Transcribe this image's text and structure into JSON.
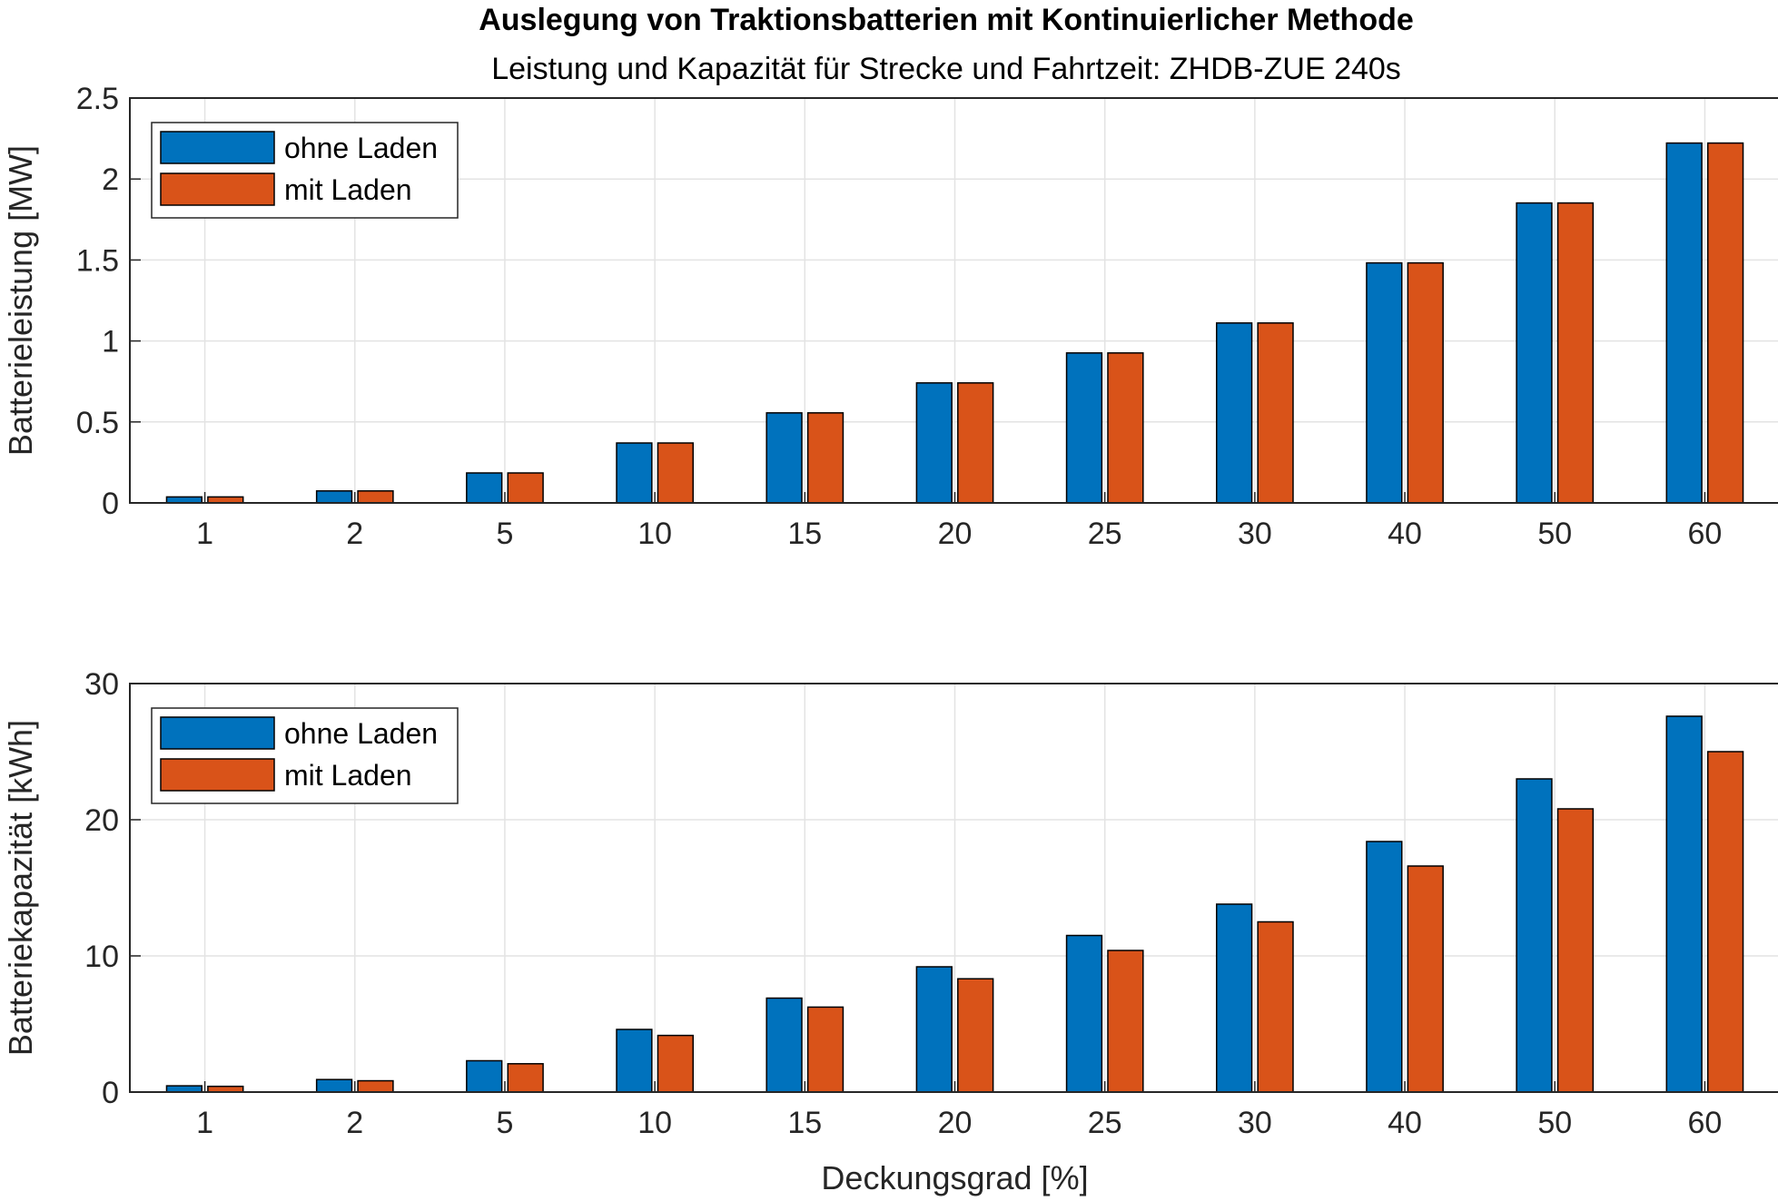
{
  "figure": {
    "title": "Auslegung von Traktionsbatterien mit Kontinuierlicher Methode",
    "subtitle": "Leistung und Kapazität für Strecke und Fahrtzeit: ZHDB-ZUE 240s"
  },
  "colors": {
    "series1": "#0072BD",
    "series2": "#D95319",
    "grid": "#e3e3e3",
    "axis": "#262626"
  },
  "chart_data": [
    {
      "type": "bar",
      "categories": [
        "1",
        "2",
        "5",
        "10",
        "15",
        "20",
        "25",
        "30",
        "40",
        "50",
        "60"
      ],
      "series": [
        {
          "name": "ohne Laden",
          "values": [
            0.037,
            0.074,
            0.185,
            0.37,
            0.556,
            0.741,
            0.926,
            1.111,
            1.482,
            1.852,
            2.222
          ]
        },
        {
          "name": "mit Laden",
          "values": [
            0.037,
            0.074,
            0.185,
            0.37,
            0.556,
            0.741,
            0.926,
            1.111,
            1.482,
            1.852,
            2.222
          ]
        }
      ],
      "xlabel": "",
      "ylabel": "Batterieleistung [MW]",
      "ylim": [
        0,
        2.5
      ],
      "yticks": [
        "0",
        "0.5",
        "1",
        "1.5",
        "2",
        "2.5"
      ],
      "grid": true,
      "legend": "top-left"
    },
    {
      "type": "bar",
      "categories": [
        "1",
        "2",
        "5",
        "10",
        "15",
        "20",
        "25",
        "30",
        "40",
        "50",
        "60"
      ],
      "series": [
        {
          "name": "ohne Laden",
          "values": [
            0.46,
            0.92,
            2.3,
            4.6,
            6.9,
            9.2,
            11.5,
            13.8,
            18.4,
            23.0,
            27.6
          ]
        },
        {
          "name": "mit Laden",
          "values": [
            0.42,
            0.83,
            2.08,
            4.16,
            6.24,
            8.32,
            10.4,
            12.5,
            16.6,
            20.8,
            25.0
          ]
        }
      ],
      "xlabel": "Deckungsgrad [%]",
      "ylabel": "Batteriekapazität [kWh]",
      "ylim": [
        0,
        30
      ],
      "yticks": [
        "0",
        "10",
        "20",
        "30"
      ],
      "grid": true,
      "legend": "top-left"
    }
  ]
}
